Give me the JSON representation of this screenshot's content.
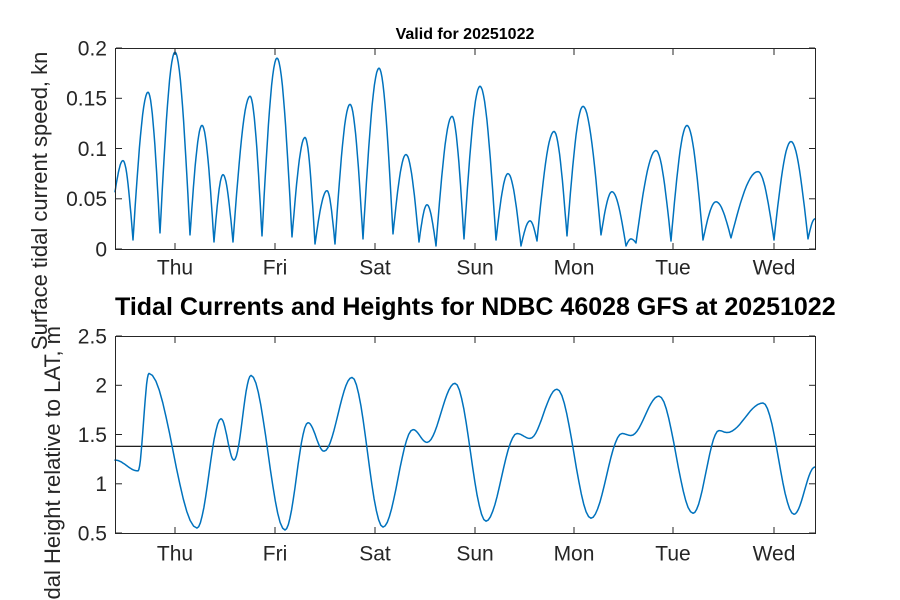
{
  "colors": {
    "line": "#0072BD",
    "axis": "#262626",
    "text": "#262626",
    "title": "#000000",
    "reference_line": "#000000",
    "background": "#ffffff"
  },
  "x_axis": {
    "tick_labels": [
      "Thu",
      "Fri",
      "Sat",
      "Sun",
      "Mon",
      "Tue",
      "Wed"
    ],
    "tick_positions_days": [
      0.6,
      1.6,
      2.6,
      3.6,
      4.59,
      5.58,
      6.59
    ],
    "range_days": [
      0,
      7
    ]
  },
  "chart_data": [
    {
      "id": "current-speed",
      "type": "line",
      "title": "Valid for 20251022",
      "ylabel": "Surface tidal current speed, kn",
      "unit": "kn",
      "ylim": [
        0,
        0.2
      ],
      "y_ticks": [
        0,
        0.05,
        0.1,
        0.15,
        0.2
      ],
      "y_tick_labels": [
        "0",
        "0.05",
        "0.1",
        "0.15",
        "0.2"
      ],
      "grid": false,
      "legend": "none",
      "interpolation": "abs-sine",
      "line_color": "#0072BD",
      "series": [
        {
          "name": "surface tidal current speed",
          "keypoints": [
            [
              0.0,
              0.057
            ],
            [
              0.08,
              0.088
            ],
            [
              0.18,
              0.009
            ],
            [
              0.33,
              0.156
            ],
            [
              0.45,
              0.016
            ],
            [
              0.6,
              0.196
            ],
            [
              0.75,
              0.014
            ],
            [
              0.87,
              0.123
            ],
            [
              0.99,
              0.007
            ],
            [
              1.08,
              0.074
            ],
            [
              1.18,
              0.007
            ],
            [
              1.35,
              0.152
            ],
            [
              1.47,
              0.013
            ],
            [
              1.62,
              0.19
            ],
            [
              1.77,
              0.012
            ],
            [
              1.9,
              0.111
            ],
            [
              2.0,
              0.005
            ],
            [
              2.12,
              0.058
            ],
            [
              2.2,
              0.005
            ],
            [
              2.35,
              0.144
            ],
            [
              2.48,
              0.01
            ],
            [
              2.64,
              0.18
            ],
            [
              2.78,
              0.015
            ],
            [
              2.91,
              0.094
            ],
            [
              3.04,
              0.007
            ],
            [
              3.12,
              0.044
            ],
            [
              3.21,
              0.003
            ],
            [
              3.37,
              0.132
            ],
            [
              3.49,
              0.01
            ],
            [
              3.65,
              0.162
            ],
            [
              3.81,
              0.009
            ],
            [
              3.93,
              0.075
            ],
            [
              4.06,
              0.003
            ],
            [
              4.15,
              0.028
            ],
            [
              4.22,
              0.008
            ],
            [
              4.39,
              0.117
            ],
            [
              4.52,
              0.013
            ],
            [
              4.68,
              0.142
            ],
            [
              4.86,
              0.014
            ],
            [
              4.97,
              0.057
            ],
            [
              5.11,
              0.003
            ],
            [
              5.16,
              0.01
            ],
            [
              5.21,
              0.006
            ],
            [
              5.41,
              0.098
            ],
            [
              5.56,
              0.008
            ],
            [
              5.72,
              0.123
            ],
            [
              5.88,
              0.009
            ],
            [
              6.01,
              0.047
            ],
            [
              6.16,
              0.011
            ],
            [
              6.43,
              0.077
            ],
            [
              6.59,
              0.009
            ],
            [
              6.76,
              0.107
            ],
            [
              6.93,
              0.01
            ],
            [
              7.0,
              0.03
            ]
          ]
        }
      ]
    },
    {
      "id": "tide-height",
      "type": "line",
      "title": "Tidal Currents and Heights for NDBC 46028 GFS at 20251022",
      "ylabel": "Tidal Height relative to LAT, m",
      "unit": "m",
      "ylim": [
        0.5,
        2.5
      ],
      "y_ticks": [
        0.5,
        1,
        1.5,
        2,
        2.5
      ],
      "y_tick_labels": [
        "0.5",
        "1",
        "1.5",
        "2",
        "2.5"
      ],
      "grid": false,
      "legend": "none",
      "interpolation": "cosine",
      "line_color": "#0072BD",
      "reference_line": {
        "value": 1.38
      },
      "series": [
        {
          "name": "tidal height relative to LAT",
          "keypoints": [
            [
              0.0,
              1.24
            ],
            [
              0.23,
              1.13
            ],
            [
              0.34,
              2.12
            ],
            [
              0.82,
              0.55
            ],
            [
              1.06,
              1.66
            ],
            [
              1.19,
              1.24
            ],
            [
              1.36,
              2.1
            ],
            [
              1.7,
              0.53
            ],
            [
              1.93,
              1.62
            ],
            [
              2.09,
              1.33
            ],
            [
              2.37,
              2.08
            ],
            [
              2.68,
              0.56
            ],
            [
              2.98,
              1.55
            ],
            [
              3.12,
              1.42
            ],
            [
              3.4,
              2.02
            ],
            [
              3.71,
              0.62
            ],
            [
              4.02,
              1.51
            ],
            [
              4.15,
              1.46
            ],
            [
              4.42,
              1.96
            ],
            [
              4.76,
              0.65
            ],
            [
              5.07,
              1.51
            ],
            [
              5.16,
              1.49
            ],
            [
              5.44,
              1.89
            ],
            [
              5.78,
              0.7
            ],
            [
              6.04,
              1.54
            ],
            [
              6.12,
              1.52
            ],
            [
              6.48,
              1.82
            ],
            [
              6.79,
              0.69
            ],
            [
              7.0,
              1.17
            ]
          ]
        }
      ]
    }
  ]
}
